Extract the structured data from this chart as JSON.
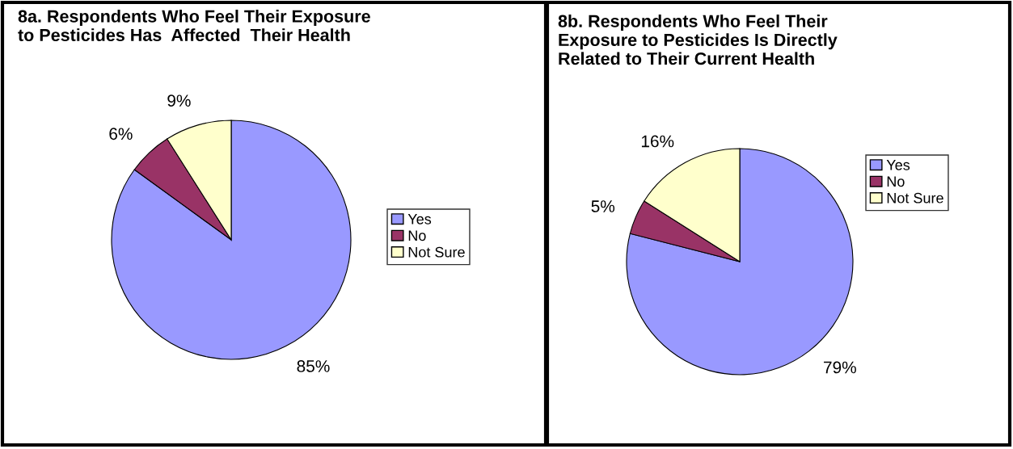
{
  "chart_data": [
    {
      "type": "pie",
      "title": "8a. Respondents Who Feel Their Exposure\nto Pesticides Has  Affected  Their Health",
      "categories": [
        "Yes",
        "No",
        "Not Sure"
      ],
      "values": [
        85,
        6,
        9
      ],
      "colors": [
        "#9999ff",
        "#993366",
        "#ffffcc"
      ],
      "value_labels": [
        "85%",
        "6%",
        "9%"
      ],
      "legend": "right"
    },
    {
      "type": "pie",
      "title": "8b. Respondents Who Feel Their\nExposure to Pesticides Is Directly\nRelated to Their Current Health",
      "categories": [
        "Yes",
        "No",
        "Not Sure"
      ],
      "values": [
        79,
        5,
        16
      ],
      "colors": [
        "#9999ff",
        "#993366",
        "#ffffcc"
      ],
      "value_labels": [
        "79%",
        "5%",
        "16%"
      ],
      "legend": "top right"
    }
  ]
}
